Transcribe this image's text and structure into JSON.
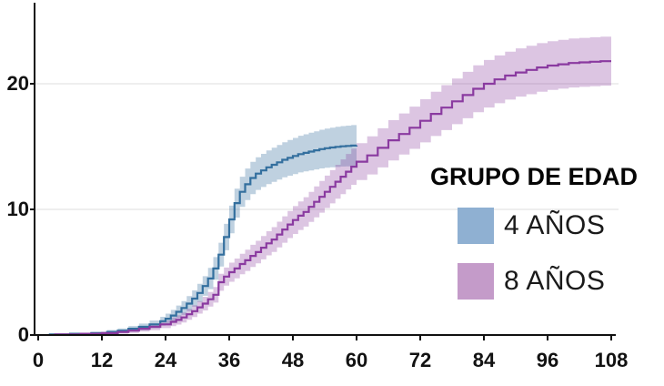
{
  "chart_data": {
    "type": "line",
    "variant": "step-cumulative-incidence-with-confidence-bands",
    "title": "",
    "xlabel": "",
    "ylabel": "",
    "xlim": [
      0,
      108
    ],
    "ylim": [
      0,
      26.5
    ],
    "x_ticks": [
      0,
      12,
      24,
      36,
      48,
      60,
      72,
      84,
      96,
      108
    ],
    "y_ticks": [
      0,
      10,
      20
    ],
    "grid_y": [
      10,
      20
    ],
    "legend_position": "inside-right",
    "point_format": "[month, value, ci_halfwidth]",
    "series": [
      {
        "name": "4 AÑOS",
        "line_color": "#336f9e",
        "band_color": "rgba(61,115,162,0.33)",
        "points": [
          [
            2,
            0.05,
            0.05
          ],
          [
            6,
            0.1,
            0.07
          ],
          [
            10,
            0.15,
            0.1
          ],
          [
            13,
            0.25,
            0.15
          ],
          [
            15,
            0.35,
            0.18
          ],
          [
            17,
            0.5,
            0.22
          ],
          [
            19,
            0.65,
            0.26
          ],
          [
            21,
            0.85,
            0.3
          ],
          [
            23,
            1.1,
            0.35
          ],
          [
            24,
            1.3,
            0.4
          ],
          [
            25,
            1.55,
            0.45
          ],
          [
            26,
            1.85,
            0.5
          ],
          [
            27,
            2.15,
            0.55
          ],
          [
            28,
            2.5,
            0.6
          ],
          [
            29,
            2.9,
            0.65
          ],
          [
            30,
            3.35,
            0.72
          ],
          [
            31,
            3.9,
            0.78
          ],
          [
            32,
            4.5,
            0.85
          ],
          [
            33,
            5.3,
            0.9
          ],
          [
            34,
            6.4,
            0.95
          ],
          [
            35,
            7.8,
            1.05
          ],
          [
            36,
            9.2,
            1.1
          ],
          [
            37,
            10.5,
            1.15
          ],
          [
            38,
            11.4,
            1.2
          ],
          [
            39,
            12.0,
            1.25
          ],
          [
            40,
            12.5,
            1.28
          ],
          [
            41,
            12.85,
            1.3
          ],
          [
            42,
            13.1,
            1.32
          ],
          [
            43,
            13.35,
            1.34
          ],
          [
            44,
            13.55,
            1.36
          ],
          [
            45,
            13.75,
            1.38
          ],
          [
            46,
            13.95,
            1.4
          ],
          [
            47,
            14.1,
            1.42
          ],
          [
            48,
            14.25,
            1.44
          ],
          [
            49,
            14.4,
            1.46
          ],
          [
            50,
            14.5,
            1.48
          ],
          [
            51,
            14.6,
            1.5
          ],
          [
            52,
            14.7,
            1.52
          ],
          [
            53,
            14.8,
            1.54
          ],
          [
            54,
            14.87,
            1.56
          ],
          [
            55,
            14.93,
            1.58
          ],
          [
            56,
            14.98,
            1.6
          ],
          [
            57,
            15.02,
            1.61
          ],
          [
            58,
            15.05,
            1.62
          ],
          [
            59,
            15.08,
            1.63
          ],
          [
            60,
            15.1,
            1.65
          ]
        ]
      },
      {
        "name": "8 AÑOS",
        "line_color": "#8a3aa0",
        "band_color": "rgba(138,63,158,0.30)",
        "points": [
          [
            3,
            0.05,
            0.05
          ],
          [
            8,
            0.1,
            0.08
          ],
          [
            12,
            0.15,
            0.1
          ],
          [
            15,
            0.25,
            0.15
          ],
          [
            17,
            0.35,
            0.18
          ],
          [
            19,
            0.5,
            0.22
          ],
          [
            21,
            0.65,
            0.26
          ],
          [
            23,
            0.85,
            0.3
          ],
          [
            25,
            1.05,
            0.34
          ],
          [
            26,
            1.2,
            0.37
          ],
          [
            27,
            1.4,
            0.4
          ],
          [
            28,
            1.65,
            0.44
          ],
          [
            29,
            1.9,
            0.47
          ],
          [
            30,
            2.2,
            0.5
          ],
          [
            31,
            2.5,
            0.54
          ],
          [
            32,
            2.85,
            0.58
          ],
          [
            33,
            3.2,
            0.62
          ],
          [
            34,
            4.2,
            0.68
          ],
          [
            35,
            4.65,
            0.72
          ],
          [
            36,
            5.0,
            0.76
          ],
          [
            37,
            5.3,
            0.79
          ],
          [
            38,
            5.65,
            0.82
          ],
          [
            39,
            5.95,
            0.85
          ],
          [
            40,
            6.3,
            0.88
          ],
          [
            41,
            6.6,
            0.9
          ],
          [
            42,
            6.95,
            0.93
          ],
          [
            43,
            7.3,
            0.96
          ],
          [
            44,
            7.6,
            0.99
          ],
          [
            45,
            8.0,
            1.02
          ],
          [
            46,
            8.4,
            1.05
          ],
          [
            47,
            8.8,
            1.08
          ],
          [
            48,
            9.15,
            1.11
          ],
          [
            49,
            9.5,
            1.14
          ],
          [
            50,
            9.8,
            1.17
          ],
          [
            51,
            10.2,
            1.2
          ],
          [
            52,
            10.6,
            1.23
          ],
          [
            53,
            11.0,
            1.26
          ],
          [
            54,
            11.4,
            1.29
          ],
          [
            55,
            11.8,
            1.32
          ],
          [
            56,
            12.2,
            1.35
          ],
          [
            57,
            12.6,
            1.38
          ],
          [
            58,
            13.0,
            1.41
          ],
          [
            59,
            13.4,
            1.44
          ],
          [
            60,
            13.8,
            1.47
          ],
          [
            62,
            14.3,
            1.52
          ],
          [
            64,
            14.9,
            1.56
          ],
          [
            66,
            15.5,
            1.6
          ],
          [
            68,
            16.0,
            1.64
          ],
          [
            70,
            16.5,
            1.68
          ],
          [
            72,
            17.05,
            1.72
          ],
          [
            74,
            17.6,
            1.76
          ],
          [
            76,
            18.1,
            1.79
          ],
          [
            78,
            18.6,
            1.82
          ],
          [
            80,
            19.1,
            1.85
          ],
          [
            82,
            19.6,
            1.87
          ],
          [
            84,
            20.0,
            1.89
          ],
          [
            86,
            20.35,
            1.9
          ],
          [
            88,
            20.65,
            1.91
          ],
          [
            90,
            20.9,
            1.92
          ],
          [
            92,
            21.1,
            1.93
          ],
          [
            94,
            21.3,
            1.93
          ],
          [
            96,
            21.45,
            1.94
          ],
          [
            98,
            21.55,
            1.94
          ],
          [
            100,
            21.65,
            1.95
          ],
          [
            102,
            21.7,
            1.95
          ],
          [
            104,
            21.75,
            1.95
          ],
          [
            106,
            21.8,
            1.95
          ],
          [
            108,
            21.8,
            1.95
          ]
        ]
      }
    ]
  },
  "legend": {
    "title": "GRUPO DE EDAD",
    "entries": [
      {
        "label": "4 AÑOS",
        "swatch_color": "#8fb0d2"
      },
      {
        "label": "8 AÑOS",
        "swatch_color": "#c49bc9"
      }
    ]
  },
  "colors": {
    "background": "#ffffff",
    "axis": "#111111",
    "gridline": "#e3e3e3",
    "tick_label": "#121212"
  }
}
